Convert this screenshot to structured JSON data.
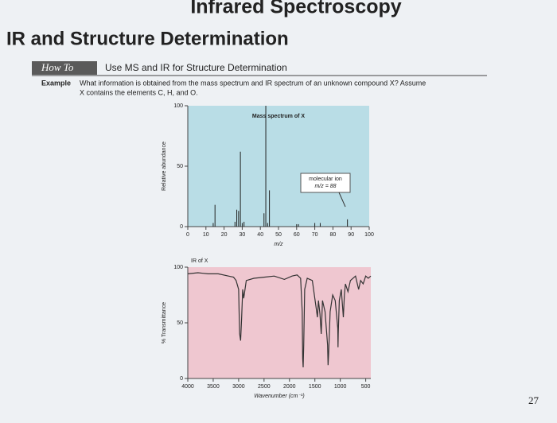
{
  "slide": {
    "title": "Infrared Spectroscopy",
    "subtitle": "IR and Structure Determination",
    "howto_label": "How To",
    "howto_text": "Use MS and IR for Structure Determination",
    "example_label": "Example",
    "example_lines": [
      "What information is obtained from the mass spectrum and IR spectrum of an unknown compound X? Assume",
      "X contains the elements C, H, and O."
    ],
    "page_number": "27"
  },
  "chart_data": [
    {
      "type": "bar",
      "title": "Mass spectrum of X",
      "xlabel": "m/z",
      "ylabel": "Relative abundance",
      "x": [
        14,
        15,
        26,
        27,
        28,
        29,
        30,
        31,
        42,
        43,
        44,
        45,
        60,
        61,
        70,
        73,
        88
      ],
      "values": [
        3,
        18,
        4,
        14,
        13,
        62,
        3,
        4,
        11,
        100,
        3,
        30,
        2,
        2,
        3,
        3,
        6
      ],
      "color": "#222222",
      "plot_color": "#b9dde6",
      "xlim": [
        0,
        100
      ],
      "xticks": [
        0,
        10,
        20,
        30,
        40,
        50,
        60,
        70,
        80,
        90,
        100
      ],
      "ylim": [
        0,
        100
      ],
      "yticks": [
        0,
        50,
        100
      ],
      "annotations": [
        "molecular ion",
        "m/z = 88"
      ]
    },
    {
      "type": "line",
      "title": "IR of X",
      "xlabel": "Wavenumber (cm⁻¹)",
      "ylabel": "% Transmittance",
      "x": [
        4000,
        3800,
        3600,
        3400,
        3200,
        3100,
        3050,
        3000,
        2990,
        2980,
        2960,
        2940,
        2920,
        2900,
        2850,
        2700,
        2500,
        2300,
        2100,
        1950,
        1850,
        1780,
        1750,
        1740,
        1730,
        1720,
        1700,
        1650,
        1550,
        1470,
        1450,
        1430,
        1400,
        1375,
        1350,
        1300,
        1250,
        1240,
        1230,
        1200,
        1150,
        1100,
        1050,
        1045,
        1040,
        1020,
        980,
        940,
        920,
        900,
        850,
        800,
        700,
        640,
        600,
        550,
        500,
        450,
        400
      ],
      "values": [
        94,
        95,
        94,
        94,
        92,
        91,
        88,
        80,
        60,
        40,
        34,
        55,
        80,
        72,
        88,
        90,
        91,
        92,
        89,
        92,
        93,
        90,
        60,
        18,
        10,
        30,
        80,
        90,
        88,
        62,
        55,
        70,
        58,
        40,
        70,
        60,
        30,
        12,
        22,
        60,
        75,
        70,
        45,
        28,
        40,
        70,
        80,
        55,
        75,
        85,
        78,
        88,
        92,
        80,
        88,
        85,
        92,
        90,
        92
      ],
      "color": "#333333",
      "plot_color": "#efc7d0",
      "xlim": [
        4000,
        400
      ],
      "xticks": [
        4000,
        3500,
        3000,
        2500,
        2000,
        1500,
        1000,
        500
      ],
      "ylim": [
        0,
        100
      ],
      "yticks": [
        0,
        50,
        100
      ]
    }
  ]
}
